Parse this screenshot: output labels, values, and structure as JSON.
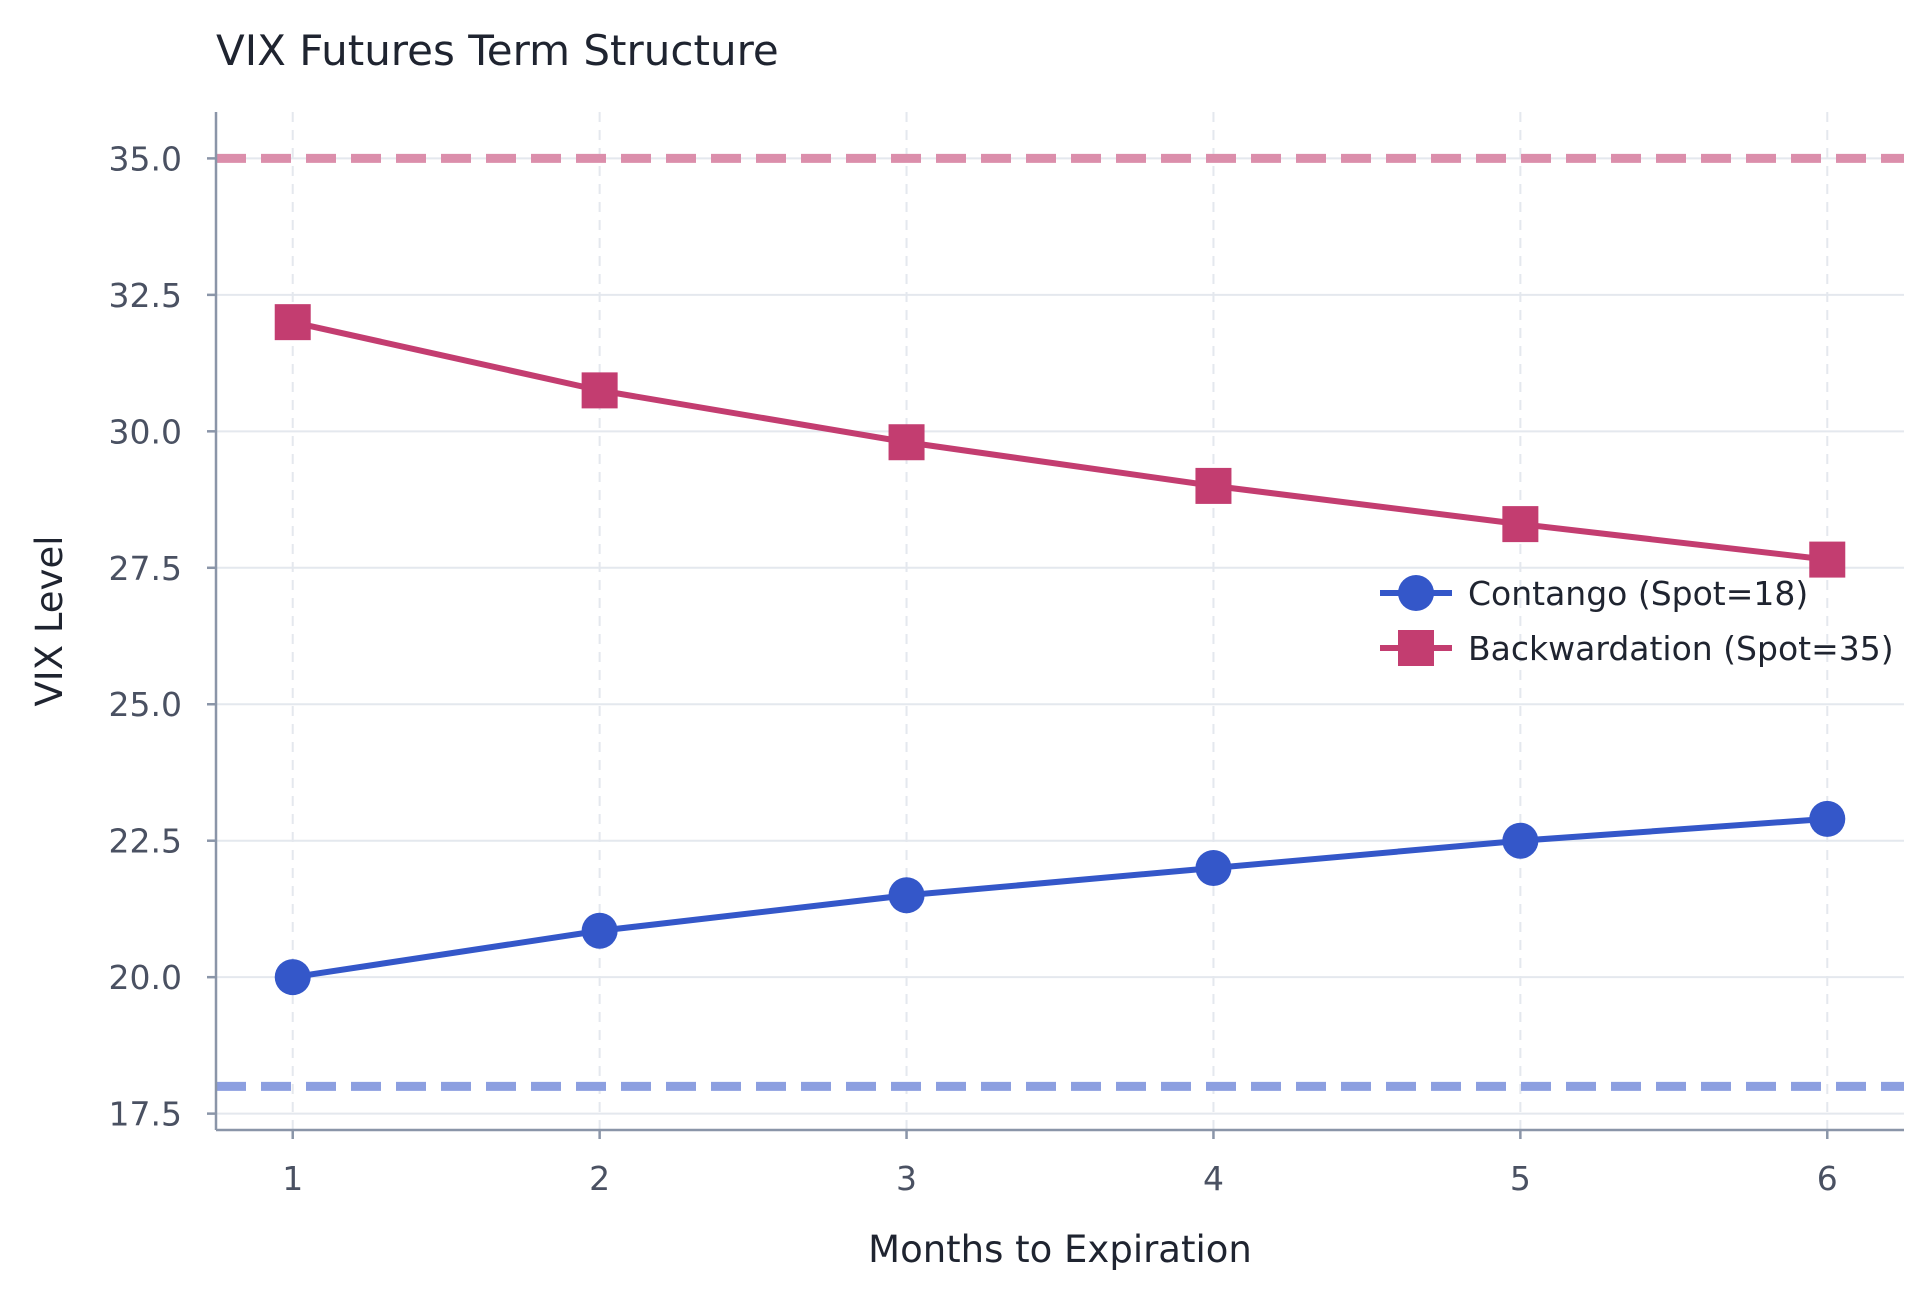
{
  "chart_data": {
    "type": "line",
    "title": "VIX Futures Term Structure",
    "xlabel": "Months to Expiration",
    "ylabel": "VIX Level",
    "x": [
      1,
      2,
      3,
      4,
      5,
      6
    ],
    "xlim": [
      0.75,
      6.25
    ],
    "ylim": [
      17.2,
      35.85
    ],
    "xticks": [
      "1",
      "2",
      "3",
      "4",
      "5",
      "6"
    ],
    "yticks": [
      17.5,
      20.0,
      22.5,
      25.0,
      27.5,
      30.0,
      32.5,
      35.0
    ],
    "ytick_labels": [
      "17.5",
      "20.0",
      "22.5",
      "25.0",
      "27.5",
      "30.0",
      "32.5",
      "35.0"
    ],
    "grid": true,
    "legend_position": "center-right",
    "series": [
      {
        "name": "Contango (Spot=18)",
        "values": [
          20.0,
          20.85,
          21.5,
          22.0,
          22.5,
          22.9
        ],
        "color": "#3457c9",
        "marker": "circle",
        "reference_line": 18
      },
      {
        "name": "Backwardation (Spot=35)",
        "values": [
          32.0,
          30.75,
          29.8,
          29.0,
          28.3,
          27.65
        ],
        "color": "#c33d70",
        "marker": "square",
        "reference_line": 35
      }
    ],
    "reference_line_colors": {
      "contango": "#8c9fe0",
      "backwardation": "#db8eab"
    }
  }
}
